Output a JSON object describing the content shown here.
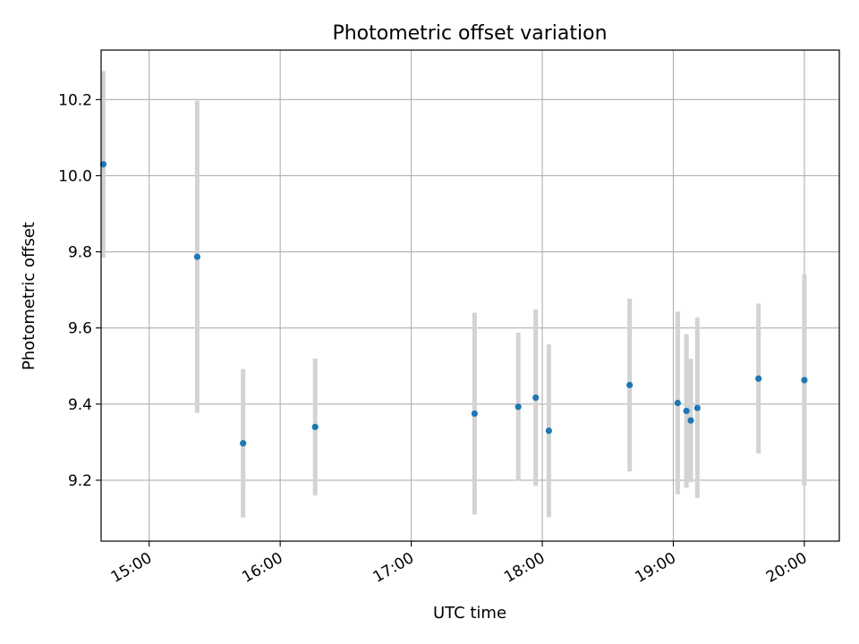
{
  "chart_data": {
    "type": "scatter",
    "title": "Photometric offset variation",
    "xlabel": "UTC time",
    "ylabel": "Photometric offset",
    "x_unit": "UTC hour of day",
    "xlim": [
      "14:38",
      "20:16"
    ],
    "ylim": [
      9.04,
      10.33
    ],
    "grid": true,
    "xticks": [
      {
        "value": "15:00",
        "label": "15:00"
      },
      {
        "value": "16:00",
        "label": "16:00"
      },
      {
        "value": "17:00",
        "label": "17:00"
      },
      {
        "value": "18:00",
        "label": "18:00"
      },
      {
        "value": "19:00",
        "label": "19:00"
      },
      {
        "value": "20:00",
        "label": "20:00"
      }
    ],
    "yticks": [
      {
        "value": 9.2,
        "label": "9.2"
      },
      {
        "value": 9.4,
        "label": "9.4"
      },
      {
        "value": 9.6,
        "label": "9.6"
      },
      {
        "value": 9.8,
        "label": "9.8"
      },
      {
        "value": 10.0,
        "label": "10.0"
      },
      {
        "value": 10.2,
        "label": "10.2"
      }
    ],
    "points": [
      {
        "x": "14:39",
        "y": 10.03,
        "err": 0.245
      },
      {
        "x": "15:22",
        "y": 9.787,
        "err": 0.41
      },
      {
        "x": "15:43",
        "y": 9.297,
        "err": 0.195
      },
      {
        "x": "16:16",
        "y": 9.34,
        "err": 0.18
      },
      {
        "x": "17:29",
        "y": 9.375,
        "err": 0.265
      },
      {
        "x": "17:49",
        "y": 9.393,
        "err": 0.195
      },
      {
        "x": "17:57",
        "y": 9.417,
        "err": 0.232
      },
      {
        "x": "18:03",
        "y": 9.33,
        "err": 0.227
      },
      {
        "x": "18:40",
        "y": 9.45,
        "err": 0.227
      },
      {
        "x": "19:02",
        "y": 9.403,
        "err": 0.24
      },
      {
        "x": "19:06",
        "y": 9.382,
        "err": 0.202
      },
      {
        "x": "19:08",
        "y": 9.357,
        "err": 0.162
      },
      {
        "x": "19:11",
        "y": 9.39,
        "err": 0.237
      },
      {
        "x": "19:39",
        "y": 9.467,
        "err": 0.197
      },
      {
        "x": "20:00",
        "y": 9.463,
        "err": 0.278
      }
    ]
  },
  "colors": {
    "marker": "#1f77b4",
    "errorbar": "#d3d3d3",
    "grid": "#b0b0b0",
    "axes": "#000000"
  }
}
